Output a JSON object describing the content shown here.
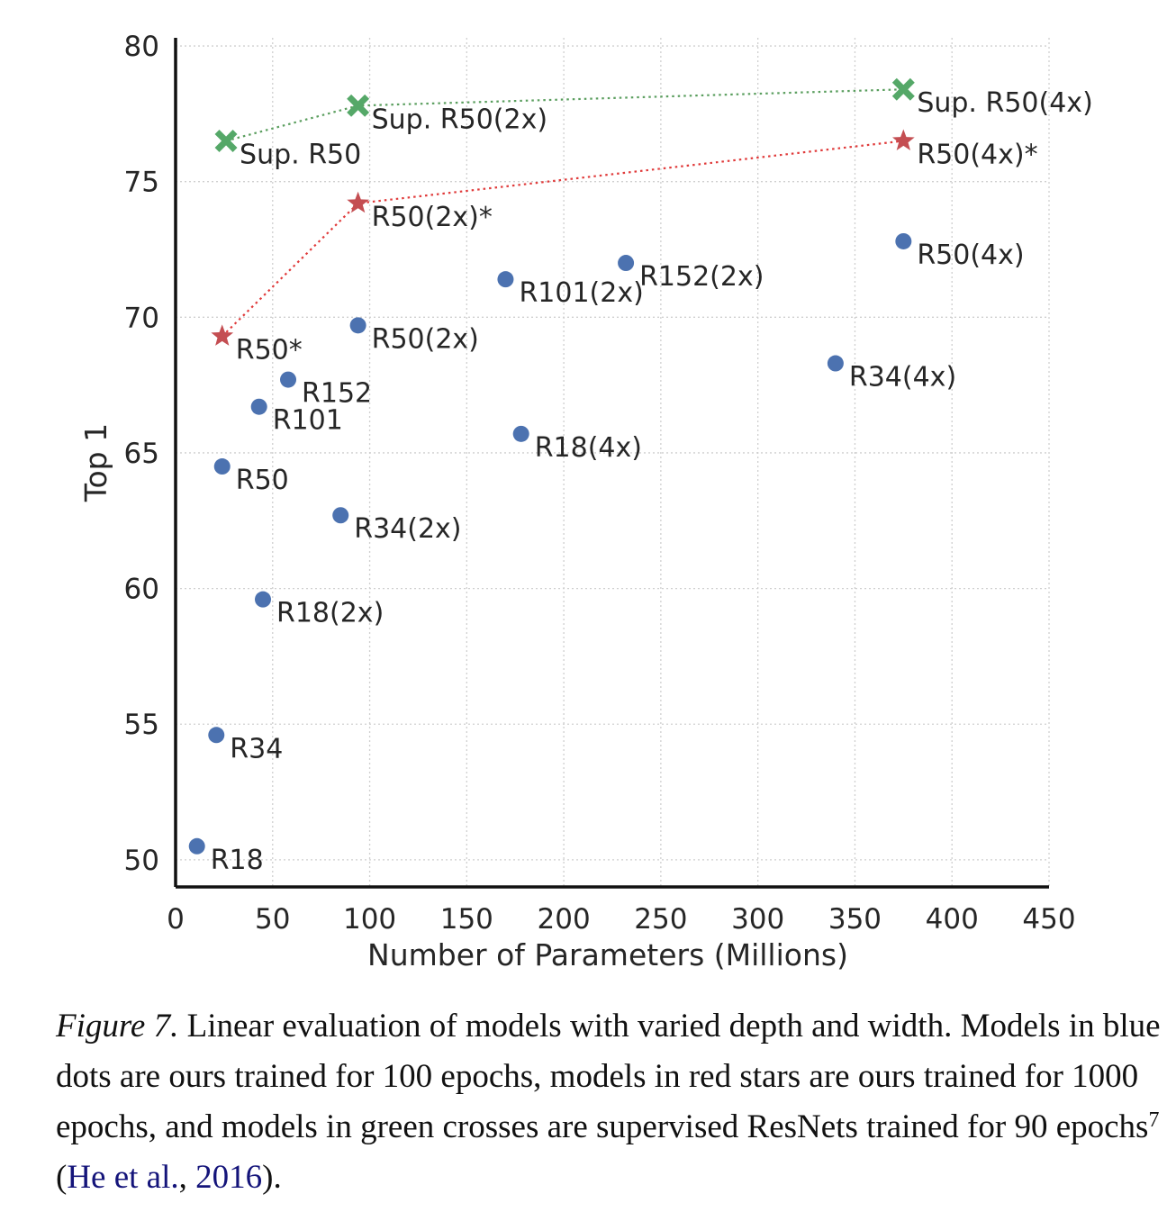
{
  "chart_data": {
    "type": "scatter",
    "xlabel": "Number of Parameters (Millions)",
    "ylabel": "Top 1",
    "xlim": [
      0,
      450
    ],
    "ylim": [
      49,
      80.3
    ],
    "xticks": [
      0,
      50,
      100,
      150,
      200,
      250,
      300,
      350,
      400,
      450
    ],
    "yticks": [
      50,
      55,
      60,
      65,
      70,
      75,
      80
    ],
    "grid": true,
    "series": [
      {
        "name": "Ours, 100 epochs",
        "marker": "circle",
        "color": "#4c72b0",
        "connected": false,
        "points": [
          {
            "label": "R18",
            "x": 11,
            "y": 50.5
          },
          {
            "label": "R34",
            "x": 21,
            "y": 54.6
          },
          {
            "label": "R50",
            "x": 24,
            "y": 64.5
          },
          {
            "label": "R101",
            "x": 43,
            "y": 66.7
          },
          {
            "label": "R152",
            "x": 58,
            "y": 67.7
          },
          {
            "label": "R18(2x)",
            "x": 45,
            "y": 59.6
          },
          {
            "label": "R34(2x)",
            "x": 85,
            "y": 62.7
          },
          {
            "label": "R50(2x)",
            "x": 94,
            "y": 69.7
          },
          {
            "label": "R101(2x)",
            "x": 170,
            "y": 71.4
          },
          {
            "label": "R152(2x)",
            "x": 232,
            "y": 72.0
          },
          {
            "label": "R18(4x)",
            "x": 178,
            "y": 65.7
          },
          {
            "label": "R34(4x)",
            "x": 340,
            "y": 68.3
          },
          {
            "label": "R50(4x)",
            "x": 375,
            "y": 72.8
          }
        ]
      },
      {
        "name": "Ours, 1000 epochs",
        "marker": "star",
        "color": "#c44e52",
        "connected": true,
        "points": [
          {
            "label": "R50*",
            "x": 24,
            "y": 69.3
          },
          {
            "label": "R50(2x)*",
            "x": 94,
            "y": 74.2
          },
          {
            "label": "R50(4x)*",
            "x": 375,
            "y": 76.5
          }
        ]
      },
      {
        "name": "Supervised, 90 epochs",
        "marker": "cross",
        "color": "#55a868",
        "connected": true,
        "points": [
          {
            "label": "Sup. R50",
            "x": 26,
            "y": 76.5
          },
          {
            "label": "Sup. R50(2x)",
            "x": 94,
            "y": 77.8
          },
          {
            "label": "Sup. R50(4x)",
            "x": 375,
            "y": 78.4
          }
        ]
      }
    ]
  },
  "caption": {
    "figure_label": "Figure 7.",
    "text": " Linear evaluation of models with varied depth and width. Models in blue dots are ours trained for 100 epochs, models in red stars are ours trained for 1000 epochs, and models in green crosses are supervised ResNets trained for 90 epochs",
    "footnote": "7",
    "open": " (",
    "cite_authors": "He et al.",
    "comma": ", ",
    "cite_year": "2016",
    "close": ")."
  }
}
